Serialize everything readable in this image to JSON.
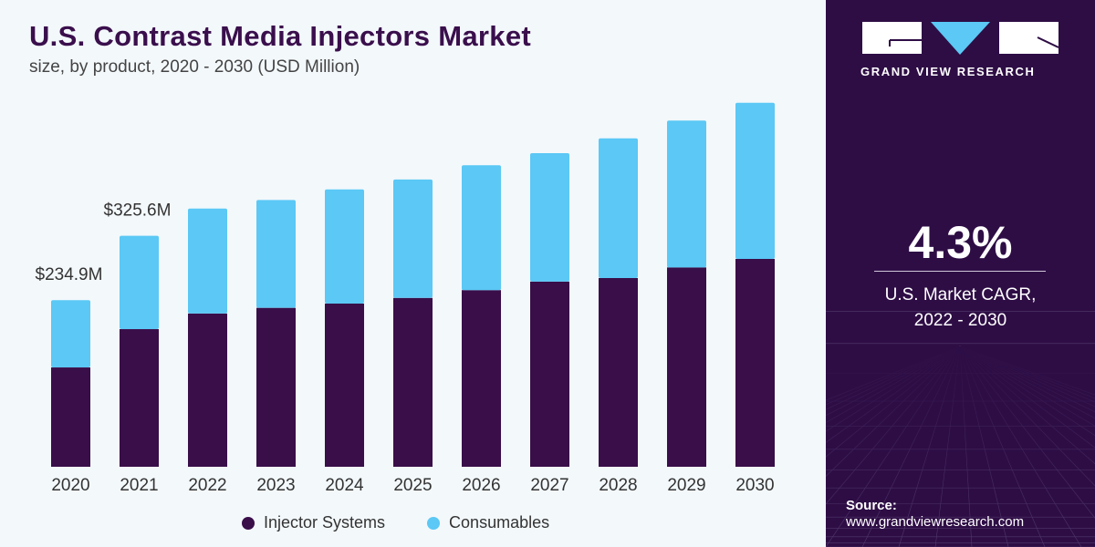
{
  "title": "U.S. Contrast Media Injectors Market",
  "subtitle": "size, by product, 2020 - 2030 (USD Million)",
  "brand": {
    "name": "GRAND VIEW RESEARCH",
    "logo_color": "#5bc8f5"
  },
  "cagr": {
    "value": "4.3%",
    "label_line1": "U.S. Market CAGR,",
    "label_line2": "2022 - 2030"
  },
  "source": {
    "label": "Source:",
    "url": "www.grandviewresearch.com"
  },
  "colors": {
    "injector_systems": "#390e49",
    "consumables": "#5bc8f5",
    "panel": "#2e0d45"
  },
  "chart_data": {
    "type": "bar",
    "stacked": true,
    "categories": [
      "2020",
      "2021",
      "2022",
      "2023",
      "2024",
      "2025",
      "2026",
      "2027",
      "2028",
      "2029",
      "2030"
    ],
    "series": [
      {
        "name": "Injector Systems",
        "values": [
          140,
          194,
          216,
          224,
          230,
          238,
          249,
          261,
          266,
          281,
          293
        ]
      },
      {
        "name": "Consumables",
        "values": [
          94.9,
          131.6,
          148,
          152,
          161,
          167,
          176,
          181,
          197,
          207,
          220
        ]
      }
    ],
    "annotations": [
      {
        "category": "2020",
        "text": "$234.9M"
      },
      {
        "category": "2021",
        "text": "$325.6M"
      }
    ],
    "ylim": [
      0,
      520
    ],
    "grid": false,
    "legend_placement": "bottom"
  }
}
